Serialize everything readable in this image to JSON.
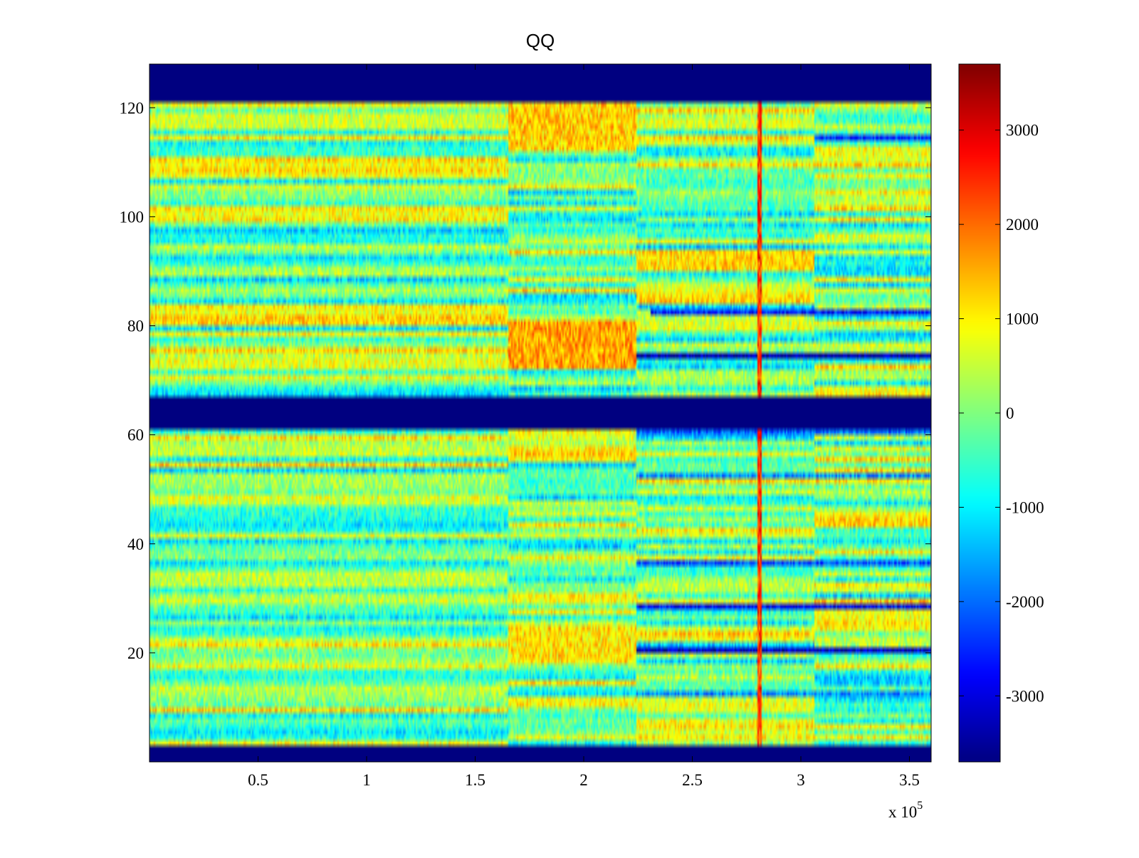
{
  "chart_data": {
    "type": "heatmap",
    "title": "QQ",
    "xlabel": "",
    "ylabel": "",
    "xlim": [
      0,
      360000
    ],
    "ylim": [
      0,
      128
    ],
    "x_ticks": [
      {
        "value": 50000,
        "label": "0.5"
      },
      {
        "value": 100000,
        "label": "1"
      },
      {
        "value": 150000,
        "label": "1.5"
      },
      {
        "value": 200000,
        "label": "2"
      },
      {
        "value": 250000,
        "label": "2.5"
      },
      {
        "value": 300000,
        "label": "3"
      },
      {
        "value": 350000,
        "label": "3.5"
      }
    ],
    "x_exponent_label": {
      "base": "x 10",
      "exponent": "5"
    },
    "y_ticks": [
      20,
      40,
      60,
      80,
      100,
      120
    ],
    "colorbar": {
      "colormap": "jet",
      "clim": [
        -3700,
        3700
      ],
      "ticks": [
        -3000,
        -2000,
        -1000,
        0,
        1000,
        2000,
        3000
      ]
    },
    "empty_row_bands": [
      [
        0,
        3
      ],
      [
        61,
        67
      ],
      [
        121,
        128
      ]
    ],
    "time_segment_boundaries": [
      165000,
      224000,
      306000
    ],
    "vertical_spike_at": 281000,
    "strong_negative_rows": [
      {
        "row": 74,
        "from": 224000,
        "to": 360000,
        "value": -3400
      },
      {
        "row": 20,
        "from": 224000,
        "to": 360000,
        "value": -3200
      },
      {
        "row": 28,
        "from": 224000,
        "to": 360000,
        "value": -2800
      },
      {
        "row": 82,
        "from": 231000,
        "to": 360000,
        "value": -2600
      },
      {
        "row": 114,
        "from": 306000,
        "to": 360000,
        "value": -2500
      },
      {
        "row": 36,
        "from": 224000,
        "to": 360000,
        "value": -2200
      },
      {
        "row": 60,
        "from": 224000,
        "to": 360000,
        "value": -2000
      },
      {
        "row": 12,
        "from": 224000,
        "to": 360000,
        "value": -1800
      },
      {
        "row": 52,
        "from": 224000,
        "to": 360000,
        "value": -1700
      }
    ],
    "strong_positive_regions": [
      {
        "rows": [
          72,
          80
        ],
        "from": 165000,
        "to": 224000,
        "value": 1900
      },
      {
        "rows": [
          112,
          120
        ],
        "from": 165000,
        "to": 224000,
        "value": 1500
      },
      {
        "rows": [
          18,
          24
        ],
        "from": 165000,
        "to": 224000,
        "value": 1300
      },
      {
        "rows": [
          90,
          93
        ],
        "from": 224000,
        "to": 306000,
        "value": 1400
      }
    ],
    "background_range": [
      -1300,
      1300
    ]
  }
}
